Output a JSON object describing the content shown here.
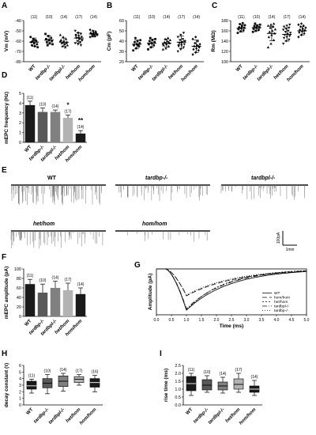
{
  "groups": [
    "WT",
    "tardbp-/-",
    "tardbpl-/-",
    "het/hom",
    "hom/hom"
  ],
  "chart_data": [
    {
      "panel": "A",
      "type": "scatter",
      "ylabel": "Vm (mV)",
      "yticks": [
        -40,
        -50,
        -60,
        -70,
        -80
      ],
      "ylim": [
        -80,
        -40
      ],
      "categories": [
        "WT",
        "tardbp-/-",
        "tardbpl-/-",
        "het/hom",
        "hom/hom"
      ],
      "n": [
        "(11)",
        "(10)",
        "(14)",
        "(17)",
        "(14)"
      ],
      "mean": [
        -61,
        -59,
        -61,
        -57,
        -53
      ],
      "sd": [
        4,
        4,
        4,
        5,
        3
      ],
      "points": [
        [
          -56,
          -58,
          -60,
          -61,
          -62,
          -63,
          -64,
          -65,
          -66,
          -60,
          -59
        ],
        [
          -53,
          -55,
          -57,
          -58,
          -59,
          -60,
          -61,
          -62,
          -63,
          -64
        ],
        [
          -54,
          -56,
          -58,
          -59,
          -60,
          -61,
          -62,
          -63,
          -64,
          -65,
          -66,
          -60,
          -61,
          -62
        ],
        [
          -50,
          -52,
          -53,
          -54,
          -55,
          -56,
          -57,
          -58,
          -59,
          -60,
          -61,
          -62,
          -63,
          -64,
          -55,
          -57,
          -59
        ],
        [
          -49,
          -50,
          -51,
          -52,
          -52,
          -53,
          -53,
          -54,
          -54,
          -55,
          -55,
          -56,
          -53,
          -52
        ]
      ]
    },
    {
      "panel": "B",
      "type": "scatter",
      "ylabel": "Cm (pF)",
      "yticks": [
        60,
        50,
        40,
        30,
        20
      ],
      "ylim": [
        20,
        60
      ],
      "categories": [
        "WT",
        "tardbp-/-",
        "tardbpl-/-",
        "het/hom",
        "hom/hom"
      ],
      "n": [
        "(11)",
        "(10)",
        "(14)",
        "(17)",
        "(14)"
      ],
      "mean": [
        37,
        38,
        38,
        39,
        35
      ],
      "sd": [
        4,
        4,
        4,
        6,
        6
      ],
      "points": [
        [
          31,
          33,
          35,
          36,
          37,
          38,
          39,
          40,
          41,
          43,
          36
        ],
        [
          32,
          34,
          36,
          37,
          38,
          39,
          40,
          41,
          42,
          43
        ],
        [
          32,
          33,
          35,
          36,
          37,
          38,
          39,
          40,
          41,
          42,
          43,
          37,
          38,
          39
        ],
        [
          30,
          32,
          34,
          35,
          36,
          37,
          38,
          39,
          40,
          41,
          42,
          44,
          46,
          48,
          36,
          38,
          40
        ],
        [
          27,
          29,
          31,
          32,
          33,
          34,
          35,
          36,
          37,
          38,
          40,
          42,
          44,
          35
        ]
      ]
    },
    {
      "panel": "C",
      "type": "scatter",
      "ylabel": "Rm (MΩ)",
      "yticks": [
        180,
        160,
        140,
        120,
        100
      ],
      "ylim": [
        100,
        180
      ],
      "categories": [
        "WT",
        "tardbp-/-",
        "tardbpl-/-",
        "het/hom",
        "hom/hom"
      ],
      "n": [
        "(11)",
        "(10)",
        "(14)",
        "(17)",
        "(14)"
      ],
      "mean": [
        165,
        166,
        155,
        153,
        160
      ],
      "sd": [
        7,
        6,
        14,
        13,
        8
      ],
      "points": [
        [
          156,
          159,
          161,
          163,
          165,
          166,
          167,
          169,
          171,
          173,
          175
        ],
        [
          158,
          160,
          162,
          164,
          166,
          167,
          169,
          170,
          172,
          174
        ],
        [
          128,
          135,
          142,
          148,
          152,
          155,
          158,
          160,
          163,
          166,
          168,
          170,
          172,
          174
        ],
        [
          135,
          140,
          143,
          146,
          148,
          150,
          152,
          154,
          156,
          158,
          160,
          162,
          164,
          166,
          168,
          170,
          172
        ],
        [
          148,
          152,
          155,
          157,
          159,
          161,
          162,
          164,
          166,
          168,
          170,
          172,
          174,
          160
        ]
      ]
    },
    {
      "panel": "D",
      "type": "bar",
      "ylabel": "mEPC frequency (Hz)",
      "yticks": [
        0,
        1,
        2,
        3,
        4,
        5
      ],
      "ylim": [
        0,
        5
      ],
      "categories": [
        "WT",
        "tardbp-/-",
        "tardbpl-/-",
        "het/hom",
        "hom/hom"
      ],
      "n": [
        "(11)",
        "(10)",
        "(14)",
        "(17)",
        "(14)"
      ],
      "values": [
        3.8,
        3.1,
        3.1,
        2.5,
        0.9
      ],
      "err": [
        0.4,
        0.4,
        0.2,
        0.3,
        0.3
      ],
      "annotations": [
        "",
        "",
        "",
        "*",
        "**"
      ],
      "colors": [
        "#1a1a1a",
        "#595959",
        "#808080",
        "#b3b3b3",
        "#1a1a1a"
      ]
    },
    {
      "panel": "F",
      "type": "bar",
      "ylabel": "mEPC amplitude (pA)",
      "yticks": [
        0,
        20,
        40,
        60,
        80,
        100
      ],
      "ylim": [
        0,
        100
      ],
      "categories": [
        "WT",
        "tardbp-/-",
        "tardbpl-/-",
        "het/hom",
        "hom/hom"
      ],
      "n": [
        "(11)",
        "(10)",
        "(14)",
        "(17)",
        "(14)"
      ],
      "values": [
        68,
        50,
        60,
        55,
        47
      ],
      "err": [
        10,
        18,
        14,
        15,
        13
      ],
      "colors": [
        "#1a1a1a",
        "#595959",
        "#808080",
        "#b3b3b3",
        "#1a1a1a"
      ]
    },
    {
      "panel": "G",
      "type": "line",
      "xlabel": "Time (ms)",
      "ylabel": "Amplitude (pA)",
      "xticks": [
        "0.0",
        "0.5",
        "1.0",
        "1.5",
        "2.0",
        "2.5",
        "3.0",
        "3.5",
        "4.0",
        "4.5",
        "5.0"
      ],
      "xlim": [
        0,
        5
      ],
      "ylim": [
        -70,
        0
      ],
      "legend": [
        "WT",
        "hom/hom",
        "het/hom",
        "tardbpl-/-",
        "tardbp-/-"
      ],
      "series": [
        {
          "name": "WT",
          "peak": -63,
          "peak_t": 1.0,
          "tau": 1.45,
          "dash": ""
        },
        {
          "name": "hom/hom",
          "peak": -41,
          "peak_t": 1.0,
          "tau": 1.65,
          "dash": "6,3"
        },
        {
          "name": "het/hom",
          "peak": -63,
          "peak_t": 1.0,
          "tau": 1.25,
          "dash": "2,2"
        },
        {
          "name": "tardbpl-/-",
          "peak": -61,
          "peak_t": 1.0,
          "tau": 1.35,
          "dash": "6,2,1,2"
        },
        {
          "name": "tardbp-/-",
          "peak": -40,
          "peak_t": 1.0,
          "tau": 1.55,
          "dash": "1,2"
        }
      ]
    },
    {
      "panel": "H",
      "type": "box",
      "ylabel": "decay constant (τ)",
      "yticks": [
        0,
        1,
        2,
        3,
        4,
        5,
        6
      ],
      "ylim": [
        0,
        6
      ],
      "categories": [
        "WT",
        "tardbp-/-",
        "tardbpl-/-",
        "het/hom",
        "hom/hom"
      ],
      "n": [
        "(11)",
        "(10)",
        "(14)",
        "(17)",
        "(16)"
      ],
      "boxes": [
        {
          "min": 1.8,
          "q1": 2.4,
          "med": 2.9,
          "q3": 3.6,
          "max": 3.9
        },
        {
          "min": 1.7,
          "q1": 2.6,
          "med": 3.3,
          "q3": 4.0,
          "max": 4.6
        },
        {
          "min": 2.1,
          "q1": 2.8,
          "med": 3.6,
          "q3": 4.4,
          "max": 4.8
        },
        {
          "min": 3.0,
          "q1": 3.4,
          "med": 3.9,
          "q3": 4.3,
          "max": 4.6
        },
        {
          "min": 2.0,
          "q1": 2.7,
          "med": 3.4,
          "q3": 4.0,
          "max": 4.5
        }
      ],
      "colors": [
        "#1a1a1a",
        "#595959",
        "#808080",
        "#b3b3b3",
        "#1a1a1a"
      ]
    },
    {
      "panel": "I",
      "type": "box",
      "ylabel": "rise time (ms)",
      "yticks": [
        0.0,
        0.5,
        1.0,
        1.5,
        2.0,
        2.5
      ],
      "ylim": [
        0,
        2.5
      ],
      "categories": [
        "WT",
        "tardbp-/-",
        "tardbpl-/-",
        "het/hom",
        "hom/hom"
      ],
      "n": [
        "(11)",
        "(10)",
        "(14)",
        "(17)",
        "(14)"
      ],
      "boxes": [
        {
          "min": 0.6,
          "q1": 0.9,
          "med": 1.35,
          "q3": 1.8,
          "max": 2.0
        },
        {
          "min": 0.8,
          "q1": 0.95,
          "med": 1.25,
          "q3": 1.6,
          "max": 1.85
        },
        {
          "min": 0.75,
          "q1": 0.95,
          "med": 1.2,
          "q3": 1.45,
          "max": 1.75
        },
        {
          "min": 0.8,
          "q1": 1.0,
          "med": 1.3,
          "q3": 1.65,
          "max": 2.0
        },
        {
          "min": 0.6,
          "q1": 0.8,
          "med": 1.0,
          "q3": 1.2,
          "max": 1.55
        }
      ],
      "colors": [
        "#1a1a1a",
        "#595959",
        "#808080",
        "#b3b3b3",
        "#1a1a1a"
      ]
    }
  ],
  "traces": {
    "panel": "E",
    "labels": [
      "WT",
      "tardbp-/-",
      "tardbpl-/-",
      "het/hom",
      "hom/hom"
    ],
    "scale_y": "100pA",
    "scale_x": "1min",
    "event_density": [
      30,
      16,
      14,
      20,
      6
    ],
    "event_depth": [
      0.75,
      0.6,
      0.55,
      0.65,
      0.4
    ]
  }
}
